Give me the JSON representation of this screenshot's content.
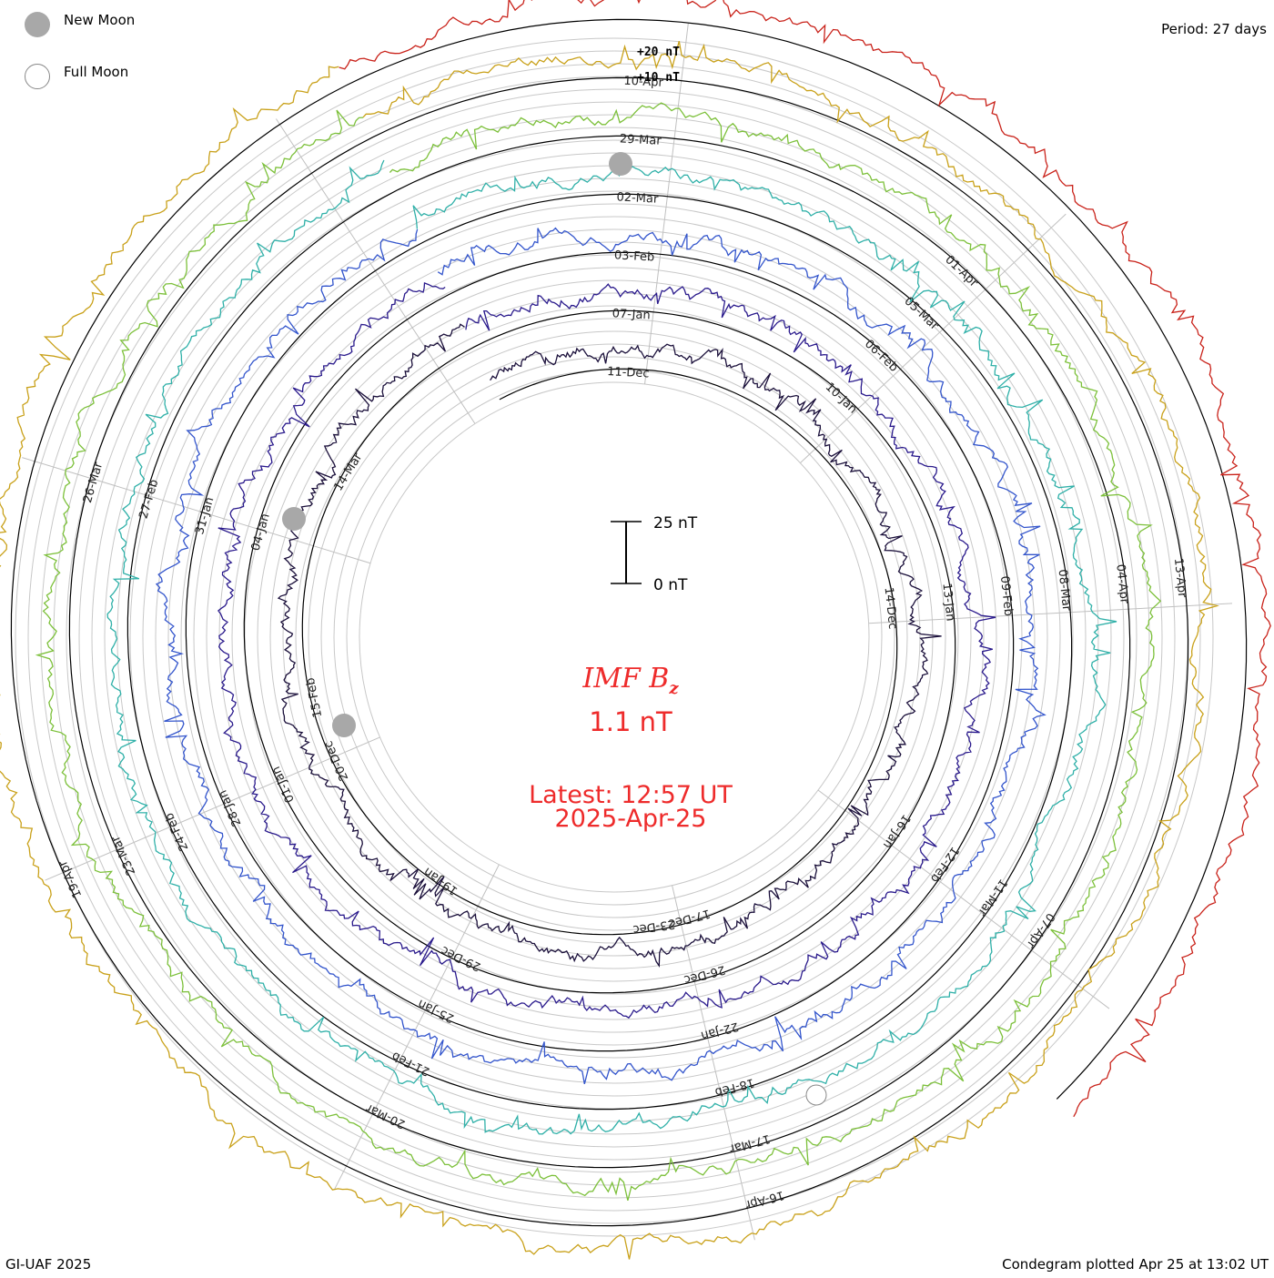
{
  "legend": {
    "new_moon": "New Moon",
    "full_moon": "Full Moon"
  },
  "period": "Period: 27 days",
  "credit": "GI-UAF 2025",
  "plotted": "Condegram plotted Apr 25 at 13:02 UT",
  "center": {
    "title_main": "IMF B",
    "title_sub": "z",
    "value": "1.1 nT",
    "latest": "Latest: 12:57 UT",
    "date": "2025-Apr-25"
  },
  "scale_bar": {
    "top": "25 nT",
    "bottom": "0 nT"
  },
  "chart_data": {
    "type": "line",
    "title": "IMF Bz",
    "period_days": 27,
    "ylabel": "nT",
    "scale_labels": [
      "+20 nT",
      "+10 nT"
    ],
    "series": [
      {
        "color": "#1a0f3a",
        "labels": [
          "11-Dec",
          "14-Dec",
          "17-Dec",
          "20-Dec"
        ]
      },
      {
        "color": "#2a1a8c",
        "labels": [
          "07-Jan",
          "10-Jan",
          "13-Jan",
          "16-Jan",
          "26-Dec",
          "29-Dec",
          "01-Jan",
          "04-Jan"
        ]
      },
      {
        "color": "#3355cc",
        "labels": [
          "03-Feb",
          "06-Feb",
          "09-Feb",
          "12-Feb",
          "22-Jan",
          "25-Jan",
          "28-Jan",
          "31-Jan"
        ]
      },
      {
        "color": "#2fb0a8",
        "labels": [
          "02-Mar",
          "05-Mar",
          "08-Mar",
          "11-Mar",
          "18-Feb",
          "21-Feb",
          "24-Feb",
          "27-Feb"
        ]
      },
      {
        "color": "#7cc03a",
        "labels": [
          "29-Mar",
          "01-Apr",
          "04-Apr",
          "07-Apr",
          "17-Mar",
          "20-Mar",
          "23-Mar",
          "26-Mar"
        ]
      },
      {
        "color": "#c9a11a",
        "labels": [
          "10-Apr",
          "13-Apr",
          "16-Apr",
          "19-Apr"
        ]
      },
      {
        "color": "#c9221a",
        "labels": []
      }
    ],
    "inner_labels": [
      "23-Dec",
      "19-Jan",
      "15-Feb",
      "14-Mar"
    ],
    "moon_new": [
      "29-Mar",
      "28-Jan",
      "29-Dec"
    ],
    "moon_full": [
      "14-Mar"
    ],
    "grid": true
  }
}
